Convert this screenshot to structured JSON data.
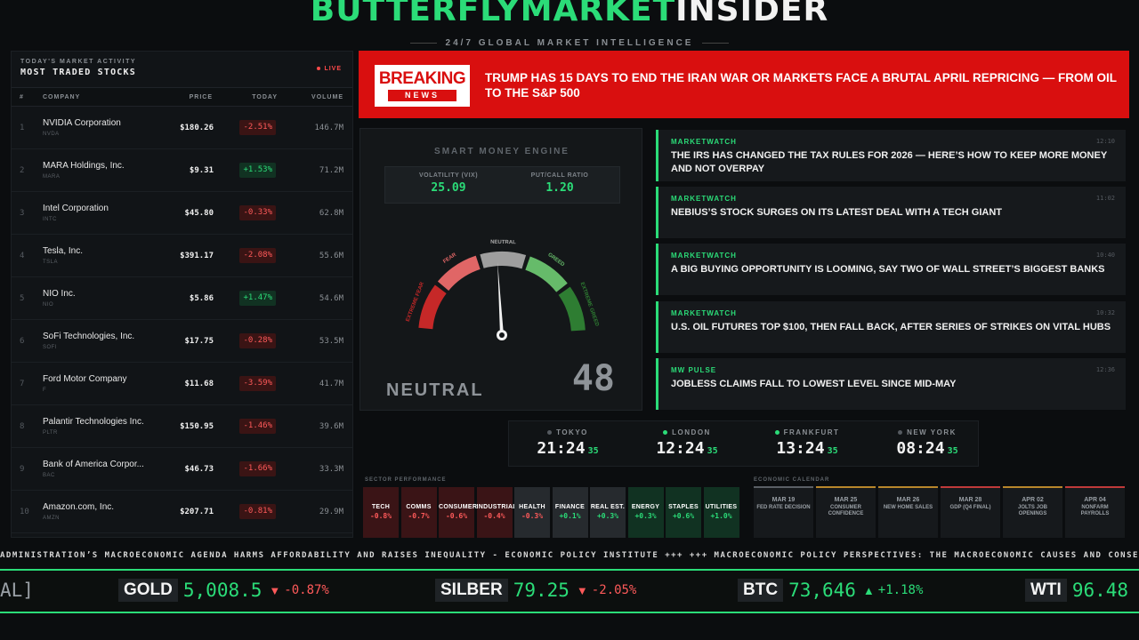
{
  "brand": {
    "green": "BUTTERFLYMARKET",
    "white": "INSIDER",
    "tagline": "24/7 GLOBAL MARKET INTELLIGENCE"
  },
  "stocks": {
    "subtitle": "TODAY'S MARKET ACTIVITY",
    "title": "MOST TRADED STOCKS",
    "live": "LIVE",
    "columns": {
      "idx": "#",
      "company": "COMPANY",
      "price": "PRICE",
      "today": "TODAY",
      "volume": "VOLUME"
    },
    "rows": [
      {
        "idx": "1",
        "name": "NVIDIA Corporation",
        "ticker": "NVDA",
        "price": "$180.26",
        "change": "-2.51%",
        "dir": "dn",
        "volume": "146.7M"
      },
      {
        "idx": "2",
        "name": "MARA Holdings, Inc.",
        "ticker": "MARA",
        "price": "$9.31",
        "change": "+1.53%",
        "dir": "up",
        "volume": "71.2M"
      },
      {
        "idx": "3",
        "name": "Intel Corporation",
        "ticker": "INTC",
        "price": "$45.80",
        "change": "-0.33%",
        "dir": "dn",
        "volume": "62.8M"
      },
      {
        "idx": "4",
        "name": "Tesla, Inc.",
        "ticker": "TSLA",
        "price": "$391.17",
        "change": "-2.08%",
        "dir": "dn",
        "volume": "55.6M"
      },
      {
        "idx": "5",
        "name": "NIO Inc.",
        "ticker": "NIO",
        "price": "$5.86",
        "change": "+1.47%",
        "dir": "up",
        "volume": "54.6M"
      },
      {
        "idx": "6",
        "name": "SoFi Technologies, Inc.",
        "ticker": "SOFI",
        "price": "$17.75",
        "change": "-0.28%",
        "dir": "dn",
        "volume": "53.5M"
      },
      {
        "idx": "7",
        "name": "Ford Motor Company",
        "ticker": "F",
        "price": "$11.68",
        "change": "-3.59%",
        "dir": "dn",
        "volume": "41.7M"
      },
      {
        "idx": "8",
        "name": "Palantir Technologies Inc.",
        "ticker": "PLTR",
        "price": "$150.95",
        "change": "-1.46%",
        "dir": "dn",
        "volume": "39.6M"
      },
      {
        "idx": "9",
        "name": "Bank of America Corpor...",
        "ticker": "BAC",
        "price": "$46.73",
        "change": "-1.66%",
        "dir": "dn",
        "volume": "33.3M"
      },
      {
        "idx": "10",
        "name": "Amazon.com, Inc.",
        "ticker": "AMZN",
        "price": "$207.71",
        "change": "-0.81%",
        "dir": "dn",
        "volume": "29.9M"
      }
    ]
  },
  "breaking": {
    "badge_top": "BREAKING",
    "badge_bottom": "NEWS",
    "headline": "TRUMP HAS 15 DAYS TO END THE IRAN WAR OR MARKETS FACE A BRUTAL APRIL REPRICING — FROM OIL TO THE S&P 500"
  },
  "gauge": {
    "title": "SMART MONEY ENGINE",
    "vix_label": "VOLATILITY (VIX)",
    "vix_value": "25.09",
    "pcr_label": "PUT/CALL RATIO",
    "pcr_value": "1.20",
    "zones": [
      "EXTREME FEAR",
      "FEAR",
      "NEUTRAL",
      "GREED",
      "EXTREME GREED"
    ],
    "state": "NEUTRAL",
    "score": "48",
    "score_value": 48
  },
  "news": [
    {
      "source": "MARKETWATCH",
      "time": "12:10",
      "text": "THE IRS HAS CHANGED THE TAX RULES FOR 2026 — HERE’S HOW TO KEEP MORE MONEY AND NOT OVERPAY"
    },
    {
      "source": "MARKETWATCH",
      "time": "11:02",
      "text": "NEBIUS’S STOCK SURGES ON ITS LATEST DEAL WITH A TECH GIANT"
    },
    {
      "source": "MARKETWATCH",
      "time": "10:40",
      "text": "A BIG BUYING OPPORTUNITY IS LOOMING, SAY TWO OF WALL STREET’S BIGGEST BANKS"
    },
    {
      "source": "MARKETWATCH",
      "time": "10:32",
      "text": "U.S. OIL FUTURES TOP $100, THEN FALL BACK, AFTER SERIES OF STRIKES ON VITAL HUBS"
    },
    {
      "source": "MW PULSE",
      "time": "12:36",
      "text": "JOBLESS CLAIMS FALL TO LOWEST LEVEL SINCE MID-MAY"
    }
  ],
  "clocks": [
    {
      "city": "TOKYO",
      "time": "21:24",
      "sec": "35",
      "dot": "#555a60"
    },
    {
      "city": "LONDON",
      "time": "12:24",
      "sec": "35",
      "dot": "#2bdc78"
    },
    {
      "city": "FRANKFURT",
      "time": "13:24",
      "sec": "35",
      "dot": "#2bdc78"
    },
    {
      "city": "NEW YORK",
      "time": "08:24",
      "sec": "35",
      "dot": "#555a60"
    }
  ],
  "sectors": {
    "title": "SECTOR PERFORMANCE",
    "items": [
      {
        "name": "TECH",
        "pct": "-0.8%",
        "dir": "dn"
      },
      {
        "name": "COMMS",
        "pct": "-0.7%",
        "dir": "dn"
      },
      {
        "name": "CONSUMER",
        "pct": "-0.6%",
        "dir": "dn"
      },
      {
        "name": "INDUSTRIAL",
        "pct": "-0.4%",
        "dir": "dn"
      },
      {
        "name": "HEALTH",
        "pct": "-0.3%",
        "dir": "flat"
      },
      {
        "name": "FINANCE",
        "pct": "+0.1%",
        "dir": "flat-up"
      },
      {
        "name": "REAL EST.",
        "pct": "+0.3%",
        "dir": "flat-up"
      },
      {
        "name": "ENERGY",
        "pct": "+0.3%",
        "dir": "up"
      },
      {
        "name": "STAPLES",
        "pct": "+0.6%",
        "dir": "up"
      },
      {
        "name": "UTILITIES",
        "pct": "+1.0%",
        "dir": "up"
      }
    ]
  },
  "calendar": {
    "title": "ECONOMIC CALENDAR",
    "items": [
      {
        "date": "MAR 19",
        "event": "FED RATE DECISION",
        "color": "#5a5f65"
      },
      {
        "date": "MAR 25",
        "event": "CONSUMER CONFIDENCE",
        "color": "#b8862b"
      },
      {
        "date": "MAR 26",
        "event": "NEW HOME SALES",
        "color": "#b8862b"
      },
      {
        "date": "MAR 28",
        "event": "GDP (Q4 FINAL)",
        "color": "#c03a3a"
      },
      {
        "date": "APR 02",
        "event": "JOLTS JOB OPENINGS",
        "color": "#b8862b"
      },
      {
        "date": "APR 04",
        "event": "NONFARM PAYROLLS",
        "color": "#c03a3a"
      }
    ]
  },
  "ticker": {
    "text": "ADMINISTRATION’S MACROECONOMIC AGENDA HARMS AFFORDABILITY AND RAISES INEQUALITY - ECONOMIC POLICY INSTITUTE +++ +++ MACROECONOMIC POLICY PERSPECTIVES: THE MACROECONOMIC CAUSES AND CONSEQUENCES OF",
    "cut": "AL]",
    "quotes": [
      {
        "sym": "GOLD",
        "val": "5,008.5",
        "arrow": "▼",
        "pct": "-0.87%",
        "dir": "dn"
      },
      {
        "sym": "SILBER",
        "val": "79.25",
        "arrow": "▼",
        "pct": "-2.05%",
        "dir": "dn"
      },
      {
        "sym": "BTC",
        "val": "73,646",
        "arrow": "▲",
        "pct": "+1.18%",
        "dir": "up"
      },
      {
        "sym": "WTI",
        "val": "96.48",
        "arrow": "",
        "pct": "",
        "dir": "up"
      }
    ]
  }
}
